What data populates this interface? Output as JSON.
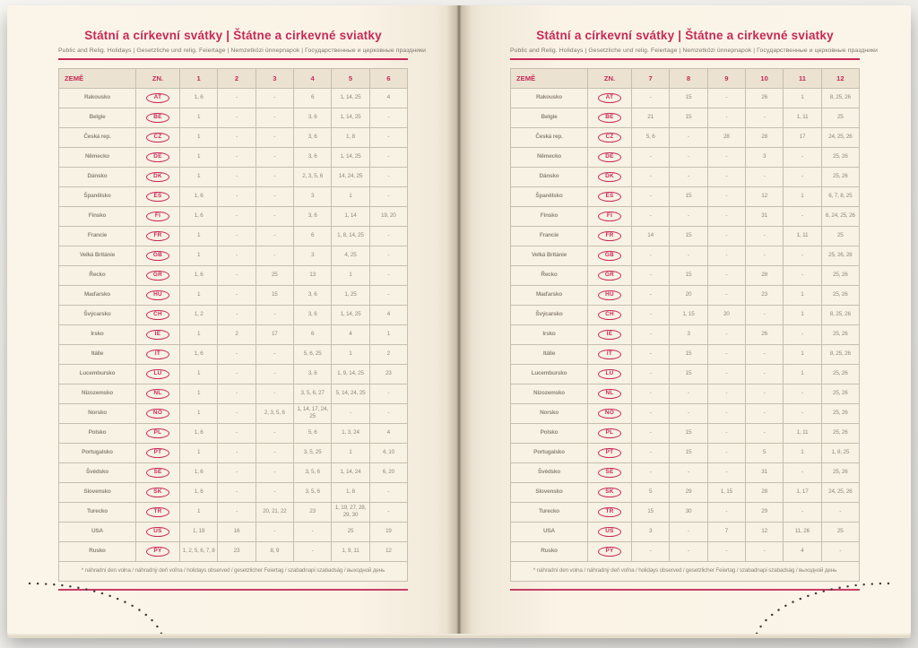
{
  "accent_color": "#c62a58",
  "paper_color": "#faf3e6",
  "value_text_color": "#90887b",
  "page": {
    "title": "Státní a církevní svátky | Štátne a cirkevné sviatky",
    "subtitle": "Public and Relig. Holidays | Gesetzliche und relig. Feiertage | Nemzetközi ünnepnapok | Государственные и церковные праздники",
    "footnote": "* náhradní den volna / náhradný deň voľna / holidays observed / gesetzlicher Feiertag / szabadnapi szabadság / выходной день"
  },
  "table": {
    "country_header": "ZEMĚ",
    "code_header": "ZN.",
    "months_left": [
      "1",
      "2",
      "3",
      "4",
      "5",
      "6"
    ],
    "months_right": [
      "7",
      "8",
      "9",
      "10",
      "11",
      "12"
    ],
    "rows": [
      {
        "country": "Rakousko",
        "code": "AT",
        "left": [
          "1, 6",
          "-",
          "-",
          "6",
          "1, 14, 25",
          "4"
        ],
        "right": [
          "-",
          "15",
          "-",
          "26",
          "1",
          "8, 25, 26"
        ]
      },
      {
        "country": "Belgie",
        "code": "BE",
        "left": [
          "1",
          "-",
          "-",
          "3, 6",
          "1, 14, 25",
          "-"
        ],
        "right": [
          "21",
          "15",
          "-",
          "-",
          "1, 11",
          "25"
        ]
      },
      {
        "country": "Česká rep.",
        "code": "CZ",
        "left": [
          "1",
          "-",
          "-",
          "3, 6",
          "1, 8",
          "-"
        ],
        "right": [
          "5, 6",
          "-",
          "28",
          "28",
          "17",
          "24, 25, 26"
        ]
      },
      {
        "country": "Německo",
        "code": "DE",
        "left": [
          "1",
          "-",
          "-",
          "3, 6",
          "1, 14, 25",
          "-"
        ],
        "right": [
          "-",
          "-",
          "-",
          "3",
          "-",
          "25, 26"
        ]
      },
      {
        "country": "Dánsko",
        "code": "DK",
        "left": [
          "1",
          "-",
          "-",
          "2, 3, 5, 6",
          "14, 24, 25",
          "-"
        ],
        "right": [
          "-",
          "-",
          "-",
          "-",
          "-",
          "25, 26"
        ]
      },
      {
        "country": "Španělsko",
        "code": "ES",
        "left": [
          "1, 6",
          "-",
          "-",
          "3",
          "1",
          "-"
        ],
        "right": [
          "-",
          "15",
          "-",
          "12",
          "1",
          "6, 7, 8, 25"
        ]
      },
      {
        "country": "Finsko",
        "code": "FI",
        "left": [
          "1, 6",
          "-",
          "-",
          "3, 6",
          "1, 14",
          "19, 20"
        ],
        "right": [
          "-",
          "-",
          "-",
          "31",
          "-",
          "6, 24, 25, 26"
        ]
      },
      {
        "country": "Francie",
        "code": "FR",
        "left": [
          "1",
          "-",
          "-",
          "6",
          "1, 8, 14, 25",
          "-"
        ],
        "right": [
          "14",
          "15",
          "-",
          "-",
          "1, 11",
          "25"
        ]
      },
      {
        "country": "Velká Británie",
        "code": "GB",
        "left": [
          "1",
          "-",
          "-",
          "3",
          "4, 25",
          "-"
        ],
        "right": [
          "-",
          "-",
          "-",
          "-",
          "-",
          "25, 26, 28"
        ]
      },
      {
        "country": "Řecko",
        "code": "GR",
        "left": [
          "1, 6",
          "-",
          "25",
          "13",
          "1",
          "-"
        ],
        "right": [
          "-",
          "15",
          "-",
          "28",
          "-",
          "25, 26"
        ]
      },
      {
        "country": "Maďarsko",
        "code": "HU",
        "left": [
          "1",
          "-",
          "15",
          "3, 6",
          "1, 25",
          "-"
        ],
        "right": [
          "-",
          "20",
          "-",
          "23",
          "1",
          "25, 26"
        ]
      },
      {
        "country": "Švýcarsko",
        "code": "CH",
        "left": [
          "1, 2",
          "-",
          "-",
          "3, 6",
          "1, 14, 25",
          "4"
        ],
        "right": [
          "-",
          "1, 15",
          "20",
          "-",
          "1",
          "8, 25, 26"
        ]
      },
      {
        "country": "Irsko",
        "code": "IE",
        "left": [
          "1",
          "2",
          "17",
          "6",
          "4",
          "1"
        ],
        "right": [
          "-",
          "3",
          "-",
          "26",
          "-",
          "25, 26"
        ]
      },
      {
        "country": "Itálie",
        "code": "IT",
        "left": [
          "1, 6",
          "-",
          "-",
          "5, 6, 25",
          "1",
          "2"
        ],
        "right": [
          "-",
          "15",
          "-",
          "-",
          "1",
          "8, 25, 26"
        ]
      },
      {
        "country": "Lucembursko",
        "code": "LU",
        "left": [
          "1",
          "-",
          "-",
          "3, 6",
          "1, 9, 14, 25",
          "23"
        ],
        "right": [
          "-",
          "15",
          "-",
          "-",
          "1",
          "25, 26"
        ]
      },
      {
        "country": "Nizozemsko",
        "code": "NL",
        "left": [
          "1",
          "-",
          "-",
          "3, 5, 6, 27",
          "5, 14, 24, 25",
          "-"
        ],
        "right": [
          "-",
          "-",
          "-",
          "-",
          "-",
          "25, 26"
        ]
      },
      {
        "country": "Norsko",
        "code": "NO",
        "left": [
          "1",
          "-",
          "2, 3, 5, 6",
          "1, 14, 17, 24, 25",
          "-",
          "-"
        ],
        "right": [
          "-",
          "-",
          "-",
          "-",
          "-",
          "25, 26"
        ]
      },
      {
        "country": "Polsko",
        "code": "PL",
        "left": [
          "1, 6",
          "-",
          "-",
          "5, 6",
          "1, 3, 24",
          "4"
        ],
        "right": [
          "-",
          "15",
          "-",
          "-",
          "1, 11",
          "25, 26"
        ]
      },
      {
        "country": "Portugalsko",
        "code": "PT",
        "left": [
          "1",
          "-",
          "-",
          "3, 5, 25",
          "1",
          "4, 10"
        ],
        "right": [
          "-",
          "15",
          "-",
          "5",
          "1",
          "1, 8, 25"
        ]
      },
      {
        "country": "Švédsko",
        "code": "SE",
        "left": [
          "1, 6",
          "-",
          "-",
          "3, 5, 6",
          "1, 14, 24",
          "6, 20"
        ],
        "right": [
          "-",
          "-",
          "-",
          "31",
          "-",
          "25, 26"
        ]
      },
      {
        "country": "Slovensko",
        "code": "SK",
        "left": [
          "1, 6",
          "-",
          "-",
          "3, 5, 6",
          "1, 8",
          "-"
        ],
        "right": [
          "5",
          "29",
          "1, 15",
          "28",
          "1, 17",
          "24, 25, 26"
        ]
      },
      {
        "country": "Turecko",
        "code": "TR",
        "left": [
          "1",
          "-",
          "20, 21, 22",
          "23",
          "1, 19, 27, 28, 29, 30",
          "-"
        ],
        "right": [
          "15",
          "30",
          "-",
          "29",
          "-",
          "-"
        ]
      },
      {
        "country": "USA",
        "code": "US",
        "left": [
          "1, 19",
          "16",
          "-",
          "-",
          "25",
          "19"
        ],
        "right": [
          "3",
          "-",
          "7",
          "12",
          "11, 26",
          "25"
        ]
      },
      {
        "country": "Rusko",
        "code": "PY",
        "left": [
          "1, 2, 5, 6, 7, 8",
          "23",
          "8, 9",
          "-",
          "1, 9, 11",
          "12"
        ],
        "right": [
          "-",
          "-",
          "-",
          "-",
          "4",
          "-"
        ]
      }
    ]
  }
}
